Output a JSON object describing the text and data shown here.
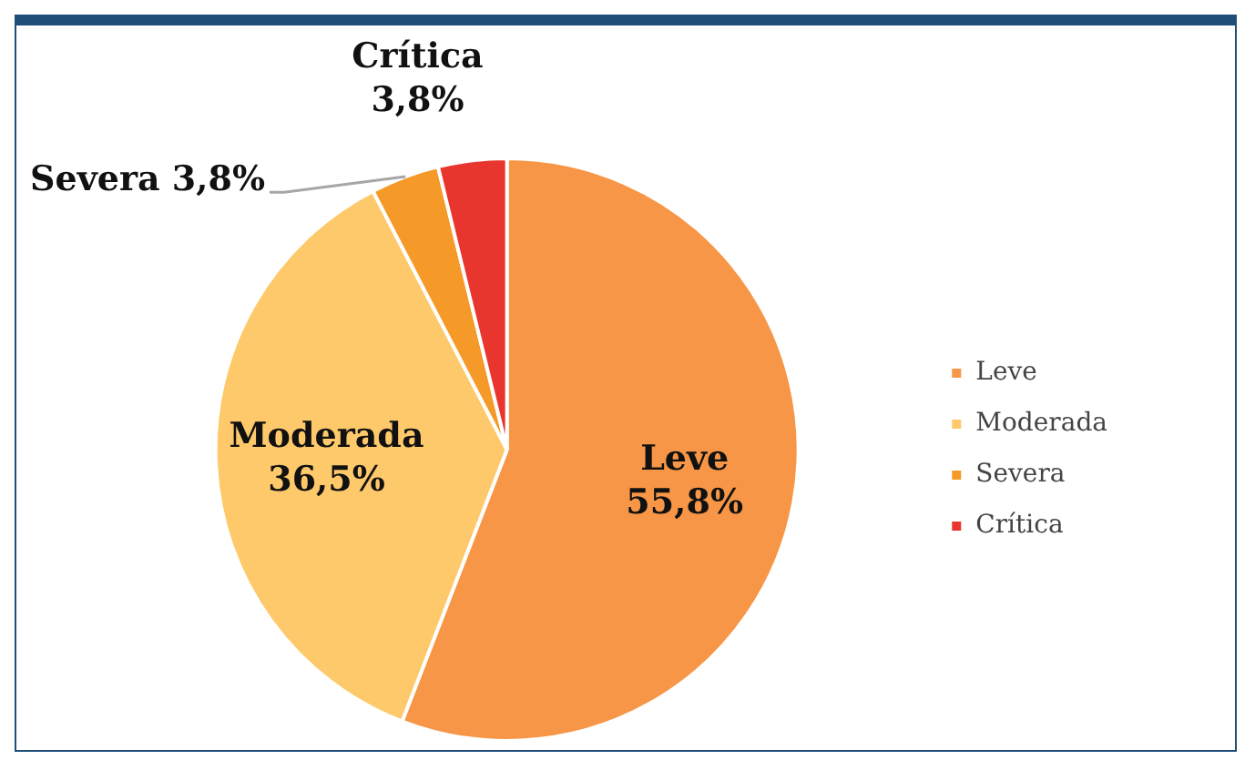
{
  "chart_data": {
    "type": "pie",
    "categories": [
      "Leve",
      "Moderada",
      "Severa",
      "Crítica"
    ],
    "values": [
      55.8,
      36.5,
      3.8,
      3.8
    ],
    "colors": [
      "#f79646",
      "#fec96a",
      "#f59a28",
      "#e8362f"
    ],
    "value_labels": [
      "55,8%",
      "36,5%",
      "3,8%",
      "3,8%"
    ],
    "legend": "right"
  }
}
